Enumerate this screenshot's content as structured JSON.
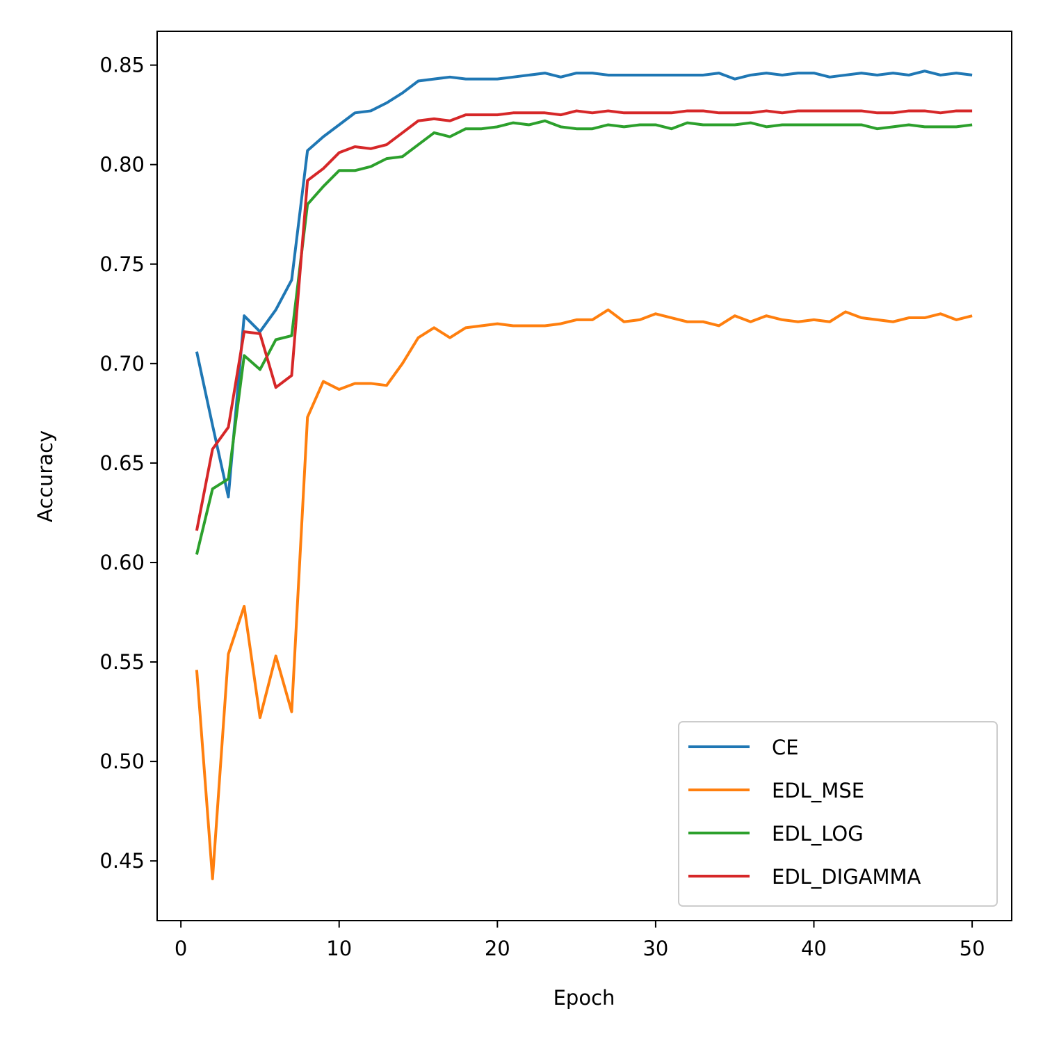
{
  "chart_data": {
    "type": "line",
    "title": "",
    "xlabel": "Epoch",
    "ylabel": "Accuracy",
    "xlim": [
      -1.5,
      52.5
    ],
    "ylim": [
      0.42,
      0.867
    ],
    "xticks": [
      0,
      10,
      20,
      30,
      40,
      50
    ],
    "xtick_labels": [
      "0",
      "10",
      "20",
      "30",
      "40",
      "50"
    ],
    "yticks": [
      0.45,
      0.5,
      0.55,
      0.6,
      0.65,
      0.7,
      0.75,
      0.8,
      0.85
    ],
    "ytick_labels": [
      "0.45",
      "0.50",
      "0.55",
      "0.60",
      "0.65",
      "0.70",
      "0.75",
      "0.80",
      "0.85"
    ],
    "grid": false,
    "legend_position": "lower-right",
    "x": [
      1,
      2,
      3,
      4,
      5,
      6,
      7,
      8,
      9,
      10,
      11,
      12,
      13,
      14,
      15,
      16,
      17,
      18,
      19,
      20,
      21,
      22,
      23,
      24,
      25,
      26,
      27,
      28,
      29,
      30,
      31,
      32,
      33,
      34,
      35,
      36,
      37,
      38,
      39,
      40,
      41,
      42,
      43,
      44,
      45,
      46,
      47,
      48,
      49,
      50
    ],
    "series": [
      {
        "name": "CE",
        "color": "#1f77b4",
        "values": [
          0.706,
          0.669,
          0.633,
          0.724,
          0.716,
          0.727,
          0.742,
          0.807,
          0.814,
          0.82,
          0.826,
          0.827,
          0.831,
          0.836,
          0.842,
          0.843,
          0.844,
          0.843,
          0.843,
          0.843,
          0.844,
          0.845,
          0.846,
          0.844,
          0.846,
          0.846,
          0.845,
          0.845,
          0.845,
          0.845,
          0.845,
          0.845,
          0.845,
          0.846,
          0.843,
          0.845,
          0.846,
          0.845,
          0.846,
          0.846,
          0.844,
          0.845,
          0.846,
          0.845,
          0.846,
          0.845,
          0.847,
          0.845,
          0.846,
          0.845
        ]
      },
      {
        "name": "EDL_MSE",
        "color": "#ff7f0e",
        "values": [
          0.546,
          0.441,
          0.554,
          0.578,
          0.522,
          0.553,
          0.525,
          0.673,
          0.691,
          0.687,
          0.69,
          0.69,
          0.689,
          0.7,
          0.713,
          0.718,
          0.713,
          0.718,
          0.719,
          0.72,
          0.719,
          0.719,
          0.719,
          0.72,
          0.722,
          0.722,
          0.727,
          0.721,
          0.722,
          0.725,
          0.723,
          0.721,
          0.721,
          0.719,
          0.724,
          0.721,
          0.724,
          0.722,
          0.721,
          0.722,
          0.721,
          0.726,
          0.723,
          0.722,
          0.721,
          0.723,
          0.723,
          0.725,
          0.722,
          0.724
        ]
      },
      {
        "name": "EDL_LOG",
        "color": "#2ca02c",
        "values": [
          0.604,
          0.637,
          0.642,
          0.704,
          0.697,
          0.712,
          0.714,
          0.78,
          0.789,
          0.797,
          0.797,
          0.799,
          0.803,
          0.804,
          0.81,
          0.816,
          0.814,
          0.818,
          0.818,
          0.819,
          0.821,
          0.82,
          0.822,
          0.819,
          0.818,
          0.818,
          0.82,
          0.819,
          0.82,
          0.82,
          0.818,
          0.821,
          0.82,
          0.82,
          0.82,
          0.821,
          0.819,
          0.82,
          0.82,
          0.82,
          0.82,
          0.82,
          0.82,
          0.818,
          0.819,
          0.82,
          0.819,
          0.819,
          0.819,
          0.82
        ]
      },
      {
        "name": "EDL_DIGAMMA",
        "color": "#d62728",
        "values": [
          0.616,
          0.657,
          0.668,
          0.716,
          0.715,
          0.688,
          0.694,
          0.792,
          0.798,
          0.806,
          0.809,
          0.808,
          0.81,
          0.816,
          0.822,
          0.823,
          0.822,
          0.825,
          0.825,
          0.825,
          0.826,
          0.826,
          0.826,
          0.825,
          0.827,
          0.826,
          0.827,
          0.826,
          0.826,
          0.826,
          0.826,
          0.827,
          0.827,
          0.826,
          0.826,
          0.826,
          0.827,
          0.826,
          0.827,
          0.827,
          0.827,
          0.827,
          0.827,
          0.826,
          0.826,
          0.827,
          0.827,
          0.826,
          0.827,
          0.827
        ]
      }
    ]
  }
}
